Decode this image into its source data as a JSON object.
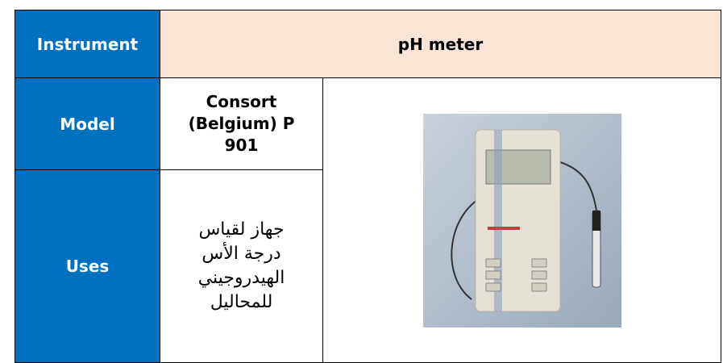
{
  "table": {
    "header": {
      "label": "Instrument",
      "value": "pH meter"
    },
    "rows": [
      {
        "label": "Model",
        "lines": [
          "Consort",
          "(Belgium) P",
          "901"
        ]
      },
      {
        "label": "Uses",
        "lines": [
          "جهاز لقياس",
          "درجة الأس",
          "الهيدروجيني",
          "للمحاليل"
        ]
      }
    ]
  }
}
